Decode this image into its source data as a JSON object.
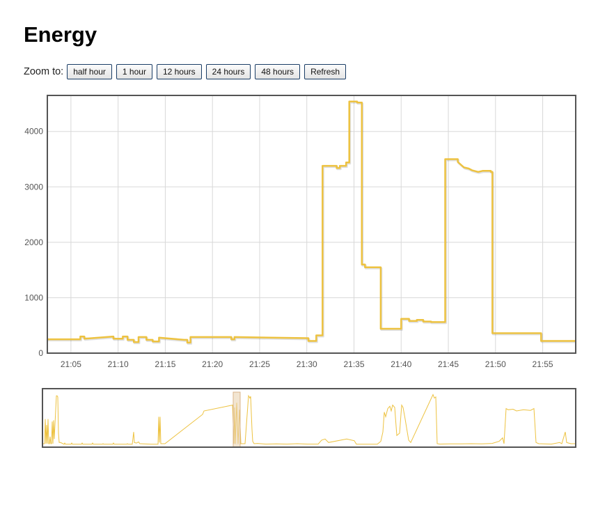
{
  "page": {
    "title": "Energy"
  },
  "zoom": {
    "label": "Zoom to:",
    "buttons": [
      {
        "label": "half hour"
      },
      {
        "label": "1 hour"
      },
      {
        "label": "12 hours"
      },
      {
        "label": "24 hours"
      },
      {
        "label": "48 hours"
      },
      {
        "label": "Refresh"
      }
    ]
  },
  "colors": {
    "series": "#edc240",
    "grid": "#d8d8d8",
    "frame": "#545454",
    "selection": "#e8cfac"
  },
  "chart_data": {
    "type": "line",
    "title": "",
    "xlabel": "",
    "ylabel": "",
    "x_unit": "time (HH:MM)",
    "xlim": [
      "21:02:30",
      "21:58:30"
    ],
    "ylim": [
      0,
      4650
    ],
    "grid": true,
    "x_ticks": [
      "21:05",
      "21:10",
      "21:15",
      "21:20",
      "21:25",
      "21:30",
      "21:35",
      "21:40",
      "21:45",
      "21:50",
      "21:55"
    ],
    "y_ticks": [
      0,
      1000,
      2000,
      3000,
      4000
    ],
    "series": [
      {
        "name": "",
        "step": true,
        "points": [
          [
            "21:02:30",
            250
          ],
          [
            "21:06:00",
            250
          ],
          [
            "21:06:00",
            300
          ],
          [
            "21:06:25",
            300
          ],
          [
            "21:06:25",
            260
          ],
          [
            "21:09:30",
            300
          ],
          [
            "21:09:30",
            260
          ],
          [
            "21:10:30",
            260
          ],
          [
            "21:10:30",
            300
          ],
          [
            "21:11:00",
            300
          ],
          [
            "21:11:00",
            240
          ],
          [
            "21:11:40",
            240
          ],
          [
            "21:11:40",
            200
          ],
          [
            "21:12:10",
            200
          ],
          [
            "21:12:10",
            290
          ],
          [
            "21:13:00",
            290
          ],
          [
            "21:13:00",
            240
          ],
          [
            "21:13:40",
            240
          ],
          [
            "21:13:40",
            210
          ],
          [
            "21:14:20",
            210
          ],
          [
            "21:14:20",
            280
          ],
          [
            "21:17:00",
            240
          ],
          [
            "21:17:20",
            240
          ],
          [
            "21:17:20",
            190
          ],
          [
            "21:17:40",
            190
          ],
          [
            "21:17:40",
            290
          ],
          [
            "21:22:00",
            290
          ],
          [
            "21:22:00",
            250
          ],
          [
            "21:22:20",
            250
          ],
          [
            "21:22:20",
            290
          ],
          [
            "21:30:10",
            270
          ],
          [
            "21:30:10",
            220
          ],
          [
            "21:31:00",
            220
          ],
          [
            "21:31:00",
            320
          ],
          [
            "21:31:40",
            320
          ],
          [
            "21:31:40",
            3380
          ],
          [
            "21:33:10",
            3380
          ],
          [
            "21:33:10",
            3340
          ],
          [
            "21:33:30",
            3340
          ],
          [
            "21:33:30",
            3380
          ],
          [
            "21:34:10",
            3380
          ],
          [
            "21:34:10",
            3440
          ],
          [
            "21:34:30",
            3440
          ],
          [
            "21:34:30",
            4540
          ],
          [
            "21:35:20",
            4540
          ],
          [
            "21:35:20",
            4520
          ],
          [
            "21:35:50",
            4520
          ],
          [
            "21:35:50",
            1600
          ],
          [
            "21:36:10",
            1600
          ],
          [
            "21:36:10",
            1550
          ],
          [
            "21:37:50",
            1550
          ],
          [
            "21:37:50",
            440
          ],
          [
            "21:40:00",
            440
          ],
          [
            "21:40:00",
            620
          ],
          [
            "21:40:50",
            620
          ],
          [
            "21:40:50",
            580
          ],
          [
            "21:41:40",
            580
          ],
          [
            "21:41:40",
            600
          ],
          [
            "21:42:20",
            600
          ],
          [
            "21:42:20",
            570
          ],
          [
            "21:43:10",
            570
          ],
          [
            "21:43:10",
            560
          ],
          [
            "21:44:40",
            560
          ],
          [
            "21:44:40",
            3500
          ],
          [
            "21:46:00",
            3500
          ],
          [
            "21:46:00",
            3450
          ],
          [
            "21:46:20",
            3400
          ],
          [
            "21:46:40",
            3350
          ],
          [
            "21:47:10",
            3330
          ],
          [
            "21:47:30",
            3300
          ],
          [
            "21:48:10",
            3270
          ],
          [
            "21:48:40",
            3290
          ],
          [
            "21:49:30",
            3290
          ],
          [
            "21:49:30",
            3270
          ],
          [
            "21:49:40",
            3270
          ],
          [
            "21:49:40",
            360
          ],
          [
            "21:54:50",
            360
          ],
          [
            "21:54:50",
            220
          ],
          [
            "21:58:30",
            220
          ]
        ]
      }
    ]
  },
  "overview_data": {
    "type": "line",
    "description_free": true,
    "ylim": [
      0,
      4650
    ],
    "points": [
      [
        0,
        300
      ],
      [
        2,
        300
      ],
      [
        3,
        2400
      ],
      [
        4,
        300
      ],
      [
        5,
        1900
      ],
      [
        6,
        300
      ],
      [
        7,
        2400
      ],
      [
        8,
        300
      ],
      [
        9,
        300
      ],
      [
        10,
        900
      ],
      [
        11,
        300
      ],
      [
        12,
        300
      ],
      [
        13,
        2200
      ],
      [
        14,
        300
      ],
      [
        15,
        2300
      ],
      [
        16,
        700
      ],
      [
        17,
        2000
      ],
      [
        19,
        4400
      ],
      [
        20,
        4400
      ],
      [
        21,
        4300
      ],
      [
        22,
        1200
      ],
      [
        23,
        400
      ],
      [
        25,
        400
      ],
      [
        30,
        250
      ],
      [
        31,
        350
      ],
      [
        32,
        250
      ],
      [
        40,
        250
      ],
      [
        41,
        350
      ],
      [
        42,
        250
      ],
      [
        55,
        250
      ],
      [
        56,
        350
      ],
      [
        57,
        250
      ],
      [
        70,
        250
      ],
      [
        71,
        350
      ],
      [
        72,
        250
      ],
      [
        85,
        250
      ],
      [
        86,
        300
      ],
      [
        87,
        250
      ],
      [
        100,
        250
      ],
      [
        101,
        350
      ],
      [
        102,
        250
      ],
      [
        120,
        250
      ],
      [
        121,
        300
      ],
      [
        122,
        250
      ],
      [
        128,
        250
      ],
      [
        130,
        1300
      ],
      [
        131,
        400
      ],
      [
        134,
        350
      ],
      [
        137,
        450
      ],
      [
        139,
        300
      ],
      [
        155,
        250
      ],
      [
        165,
        250
      ],
      [
        166,
        2600
      ],
      [
        167,
        400
      ],
      [
        168,
        2600
      ],
      [
        169,
        300
      ],
      [
        172,
        300
      ],
      [
        175,
        300
      ],
      [
        229,
        2800
      ],
      [
        231,
        3100
      ],
      [
        272,
        3600
      ],
      [
        274,
        300
      ],
      [
        275,
        3400
      ],
      [
        276,
        280
      ],
      [
        278,
        3800
      ],
      [
        280,
        280
      ],
      [
        282,
        3200
      ],
      [
        284,
        300
      ],
      [
        285,
        300
      ],
      [
        290,
        300
      ],
      [
        295,
        4400
      ],
      [
        297,
        4200
      ],
      [
        298,
        4350
      ],
      [
        300,
        1500
      ],
      [
        301,
        500
      ],
      [
        303,
        300
      ],
      [
        308,
        320
      ],
      [
        320,
        260
      ],
      [
        335,
        280
      ],
      [
        350,
        260
      ],
      [
        365,
        300
      ],
      [
        380,
        260
      ],
      [
        395,
        260
      ],
      [
        400,
        600
      ],
      [
        405,
        700
      ],
      [
        410,
        400
      ],
      [
        436,
        700
      ],
      [
        447,
        550
      ],
      [
        450,
        250
      ],
      [
        480,
        250
      ],
      [
        485,
        500
      ],
      [
        488,
        1300
      ],
      [
        490,
        3000
      ],
      [
        492,
        2600
      ],
      [
        495,
        3300
      ],
      [
        498,
        3500
      ],
      [
        500,
        3100
      ],
      [
        502,
        3600
      ],
      [
        505,
        3400
      ],
      [
        508,
        1000
      ],
      [
        512,
        1200
      ],
      [
        515,
        3600
      ],
      [
        517,
        3400
      ],
      [
        520,
        2400
      ],
      [
        525,
        600
      ],
      [
        528,
        400
      ],
      [
        560,
        4500
      ],
      [
        562,
        4200
      ],
      [
        564,
        4300
      ],
      [
        566,
        300
      ],
      [
        570,
        260
      ],
      [
        585,
        280
      ],
      [
        600,
        280
      ],
      [
        615,
        300
      ],
      [
        630,
        280
      ],
      [
        645,
        320
      ],
      [
        655,
        500
      ],
      [
        660,
        800
      ],
      [
        662,
        300
      ],
      [
        665,
        3300
      ],
      [
        668,
        3200
      ],
      [
        675,
        3250
      ],
      [
        680,
        3100
      ],
      [
        690,
        3200
      ],
      [
        700,
        3150
      ],
      [
        705,
        3300
      ],
      [
        708,
        400
      ],
      [
        712,
        300
      ],
      [
        730,
        260
      ],
      [
        742,
        400
      ],
      [
        745,
        300
      ],
      [
        750,
        1300
      ],
      [
        752,
        400
      ],
      [
        758,
        300
      ],
      [
        764,
        300
      ]
    ],
    "x_range": [
      0,
      764
    ],
    "selection_x": [
      273,
      283
    ]
  }
}
